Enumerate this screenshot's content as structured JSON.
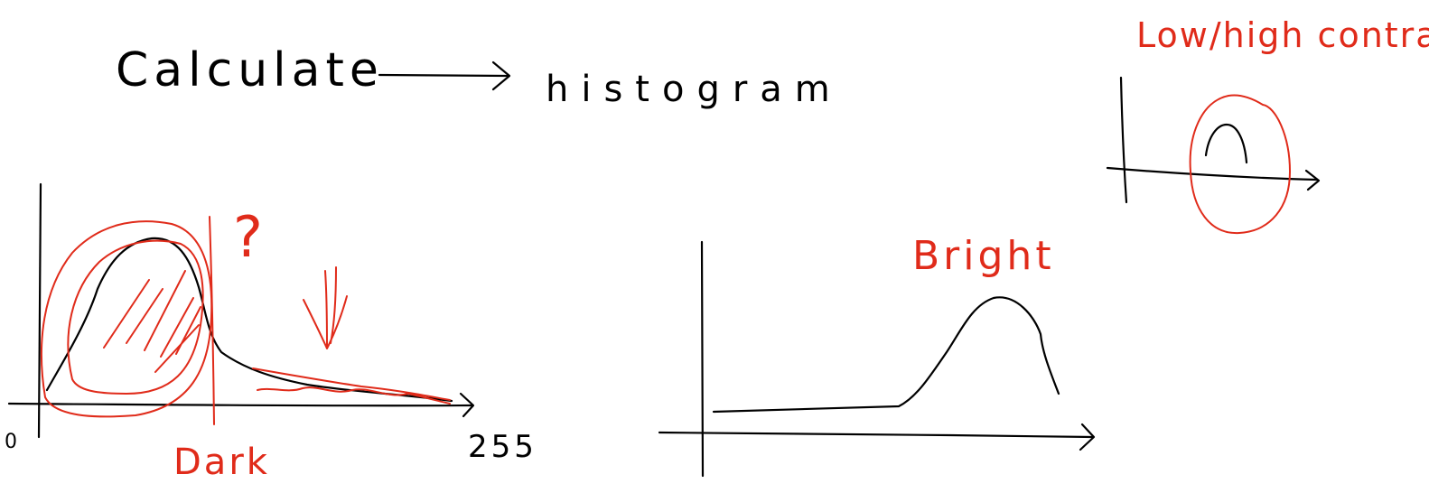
{
  "colors": {
    "ink_black": "#000000",
    "ink_red": "#e02b1a",
    "background": "#ffffff"
  },
  "heading": {
    "left_word": "Calculate",
    "right_word": "histogram"
  },
  "dark_histogram": {
    "origin_label": "0",
    "max_label": "255",
    "caption": "Dark",
    "question_mark": "?"
  },
  "bright_histogram": {
    "caption": "Bright"
  },
  "low_contrast_histogram": {
    "caption": "Low/high contrast"
  }
}
